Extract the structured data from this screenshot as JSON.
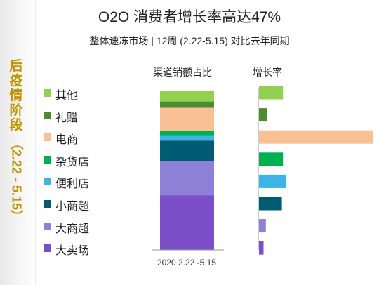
{
  "title": "O2O 消费者增长率高达47%",
  "subtitle": "整体速冻市场 | 12周 (2.22-5.15) 对比去年同期",
  "side_label": {
    "main": "后疫情阶段",
    "period": "（2.22 - 5.15）"
  },
  "headers": {
    "share": "渠道销额占比",
    "growth": "增长率"
  },
  "legend": [
    {
      "label": "其他",
      "color": "#92d050"
    },
    {
      "label": "礼赠",
      "color": "#4e8a2e"
    },
    {
      "label": "电商",
      "color": "#f9c096"
    },
    {
      "label": "杂货店",
      "color": "#00b050"
    },
    {
      "label": "便利店",
      "color": "#3db4e6"
    },
    {
      "label": "小商超",
      "color": "#005c73"
    },
    {
      "label": "大商超",
      "color": "#8d80d6"
    },
    {
      "label": "大卖场",
      "color": "#7a4fc7"
    }
  ],
  "chart_data": [
    {
      "type": "bar",
      "stacked": true,
      "title": "渠道销额占比",
      "categories": [
        "2020 2.22 -5.15"
      ],
      "series": [
        {
          "name": "大卖场",
          "values": [
            35
          ]
        },
        {
          "name": "大商超",
          "values": [
            22
          ]
        },
        {
          "name": "小商超",
          "values": [
            13
          ]
        },
        {
          "name": "便利店",
          "values": [
            3
          ]
        },
        {
          "name": "杂货店",
          "values": [
            3
          ]
        },
        {
          "name": "电商",
          "values": [
            15
          ]
        },
        {
          "name": "礼赠",
          "values": [
            4
          ]
        },
        {
          "name": "其他",
          "values": [
            7
          ]
        }
      ],
      "ylim": [
        0,
        100
      ]
    },
    {
      "type": "bar",
      "orientation": "horizontal",
      "title": "增长率",
      "categories": [
        "其他",
        "礼赠",
        "电商",
        "杂货店",
        "便利店",
        "小商超",
        "大商超",
        "大卖场"
      ],
      "values": [
        0.21,
        0.07,
        1.0,
        0.21,
        0.24,
        0.2,
        0.06,
        0.04
      ]
    }
  ]
}
